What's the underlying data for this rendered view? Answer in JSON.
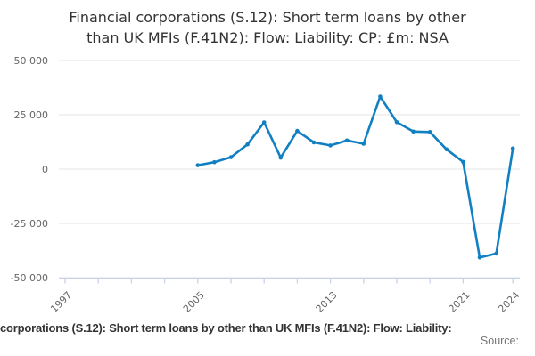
{
  "title": {
    "line1": "Financial corporations (S.12): Short term loans by other",
    "line2": "than UK MFIs (F.41N2): Flow: Liability: CP: £m: NSA"
  },
  "chart_data": {
    "type": "line",
    "title": "Financial corporations (S.12): Short term loans by other than UK MFIs (F.41N2): Flow: Liability: CP: £m: NSA",
    "x": [
      2005,
      2006,
      2007,
      2008,
      2009,
      2010,
      2011,
      2012,
      2013,
      2014,
      2015,
      2016,
      2017,
      2018,
      2019,
      2020,
      2021,
      2022,
      2023,
      2024
    ],
    "values": [
      1800,
      3200,
      5500,
      11400,
      21500,
      5300,
      17600,
      12300,
      10900,
      13200,
      11700,
      33400,
      21600,
      17300,
      17100,
      9100,
      3300,
      -40700,
      -38900,
      9500
    ],
    "xlabel": "",
    "ylabel": "",
    "ylim": [
      -50000,
      50000
    ],
    "xlim_years": [
      1996.6,
      2024.4
    ],
    "grid": true,
    "legend": "none",
    "yticks": [
      {
        "value": 50000,
        "label": "50 000"
      },
      {
        "value": 25000,
        "label": "25 000"
      },
      {
        "value": 0,
        "label": "0"
      },
      {
        "value": -25000,
        "label": "-25 000"
      },
      {
        "value": -50000,
        "label": "-50 000"
      }
    ],
    "x_axis_tick_years": [
      1997,
      1999,
      2001,
      2003,
      2005,
      2007,
      2009,
      2011,
      2013,
      2015,
      2017,
      2019,
      2021,
      2024
    ],
    "x_axis_labels": [
      "1997",
      "2005",
      "2013",
      "2021",
      "2024"
    ],
    "colors": {
      "line": "#1180c2",
      "grid": "#e6e6e6",
      "axis": "#c6d3e8",
      "tick_text": "#666666",
      "title_text": "#333333"
    }
  },
  "footer": {
    "caption": "corporations (S.12): Short term loans by other than UK MFIs (F.41N2): Flow: Liability:",
    "source_label": "Source:"
  }
}
